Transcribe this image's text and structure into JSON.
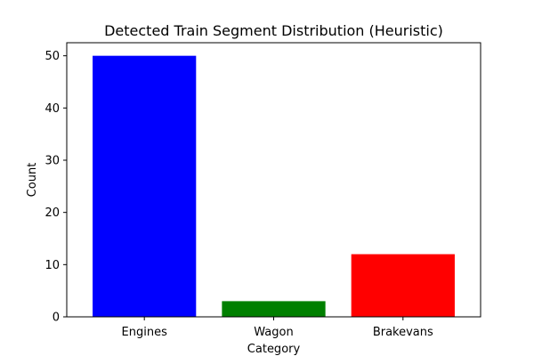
{
  "chart_data": {
    "type": "bar",
    "title": "Detected Train Segment Distribution (Heuristic)",
    "xlabel": "Category",
    "ylabel": "Count",
    "categories": [
      "Engines",
      "Wagon",
      "Brakevans"
    ],
    "values": [
      50,
      3,
      12
    ],
    "colors": [
      "#0000ff",
      "#008000",
      "#ff0000"
    ],
    "ylim": [
      0,
      52.5
    ],
    "yticks": [
      0,
      10,
      20,
      30,
      40,
      50
    ],
    "grid": false,
    "legend": "none"
  }
}
